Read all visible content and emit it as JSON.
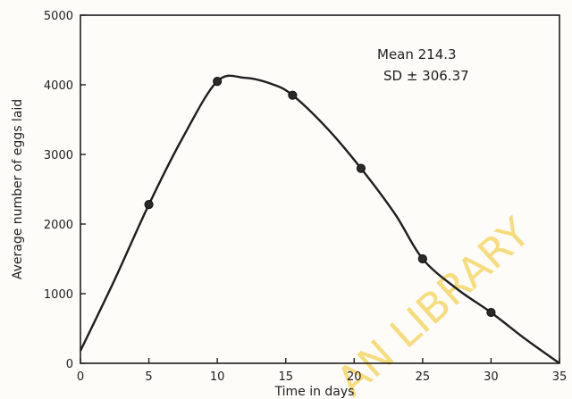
{
  "chart_data": {
    "type": "line",
    "x": [
      5,
      10,
      15.5,
      20.5,
      25,
      30
    ],
    "values": [
      2280,
      4050,
      3850,
      2800,
      1500,
      730
    ],
    "curve": {
      "x": [
        0,
        2.5,
        5,
        7.5,
        10,
        12,
        14,
        15.5,
        18,
        20.5,
        23,
        25,
        27.5,
        30,
        32.5,
        35
      ],
      "y": [
        180,
        1200,
        2280,
        3250,
        4050,
        4100,
        4010,
        3850,
        3380,
        2800,
        2140,
        1500,
        1070,
        730,
        350,
        0
      ]
    },
    "xlabel": "Time in days",
    "ylabel": "Average number of eggs laid",
    "xlim": [
      0,
      35
    ],
    "ylim": [
      0,
      5000
    ],
    "xticks": [
      "0",
      "5",
      "10",
      "15",
      "20",
      "25",
      "30",
      "35"
    ],
    "yticks": [
      "0",
      "1000",
      "2000",
      "3000",
      "4000",
      "5000"
    ],
    "annotation": {
      "line1": "Mean  214.3",
      "line2": "SD ± 306.37"
    },
    "grid": false
  },
  "watermark": {
    "text": "AN LIBRARY",
    "color": "#f3c21a"
  }
}
